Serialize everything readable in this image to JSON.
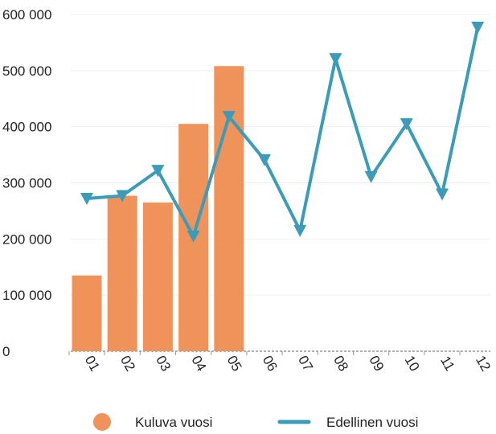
{
  "chart_data": {
    "type": "bar",
    "categories": [
      "01",
      "02",
      "03",
      "04",
      "05",
      "06",
      "07",
      "08",
      "09",
      "10",
      "11",
      "12"
    ],
    "series": [
      {
        "name": "Kuluva vuosi",
        "kind": "bar",
        "color": "#f0935a",
        "values": [
          135000,
          277000,
          265000,
          405000,
          508000,
          null,
          null,
          null,
          null,
          null,
          null,
          null
        ]
      },
      {
        "name": "Edellinen vuosi",
        "kind": "line",
        "color": "#3a9cb8",
        "marker": "triangle-down",
        "values": [
          272000,
          277000,
          322000,
          205000,
          418000,
          341000,
          215000,
          521000,
          311000,
          405000,
          280000,
          577000
        ]
      }
    ],
    "y_ticks": [
      "0",
      "100 000",
      "200 000",
      "300 000",
      "400 000",
      "500 000",
      "600 000"
    ],
    "ylim": [
      0,
      600000
    ],
    "grid": true,
    "legend_position": "bottom"
  }
}
